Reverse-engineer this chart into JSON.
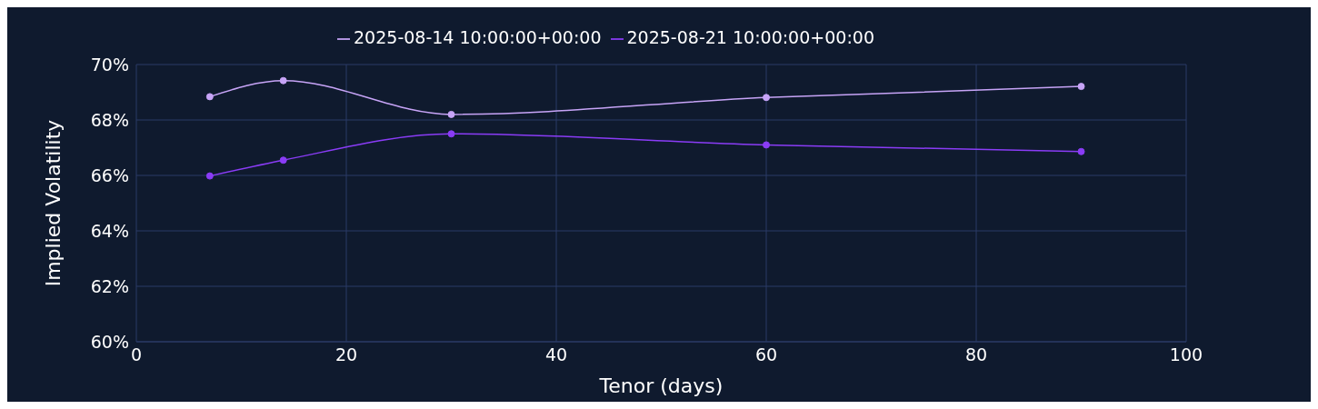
{
  "chart_data": {
    "type": "line",
    "xlabel": "Tenor (days)",
    "ylabel": "Implied Volatility",
    "x": [
      7,
      14,
      30,
      60,
      90
    ],
    "series": [
      {
        "name": "2025-08-14 10:00:00+00:00",
        "color": "#c7a4f7",
        "values": [
          68.84,
          69.42,
          68.2,
          68.81,
          69.21
        ]
      },
      {
        "name": "2025-08-21 10:00:00+00:00",
        "color": "#8a3cf6",
        "values": [
          65.98,
          66.55,
          67.5,
          67.1,
          66.86
        ]
      }
    ],
    "xlim": [
      0,
      100
    ],
    "xticks": [
      0,
      20,
      40,
      60,
      80,
      100
    ],
    "ylim": [
      60,
      70
    ],
    "yticks": [
      {
        "value": 60,
        "label": "60%"
      },
      {
        "value": 62,
        "label": "62%"
      },
      {
        "value": 64,
        "label": "64%"
      },
      {
        "value": 66,
        "label": "66%"
      },
      {
        "value": 68,
        "label": "68%"
      },
      {
        "value": 70,
        "label": "70%"
      }
    ],
    "grid": true,
    "legend": "top",
    "marker": "circle",
    "line_style": "solid"
  }
}
